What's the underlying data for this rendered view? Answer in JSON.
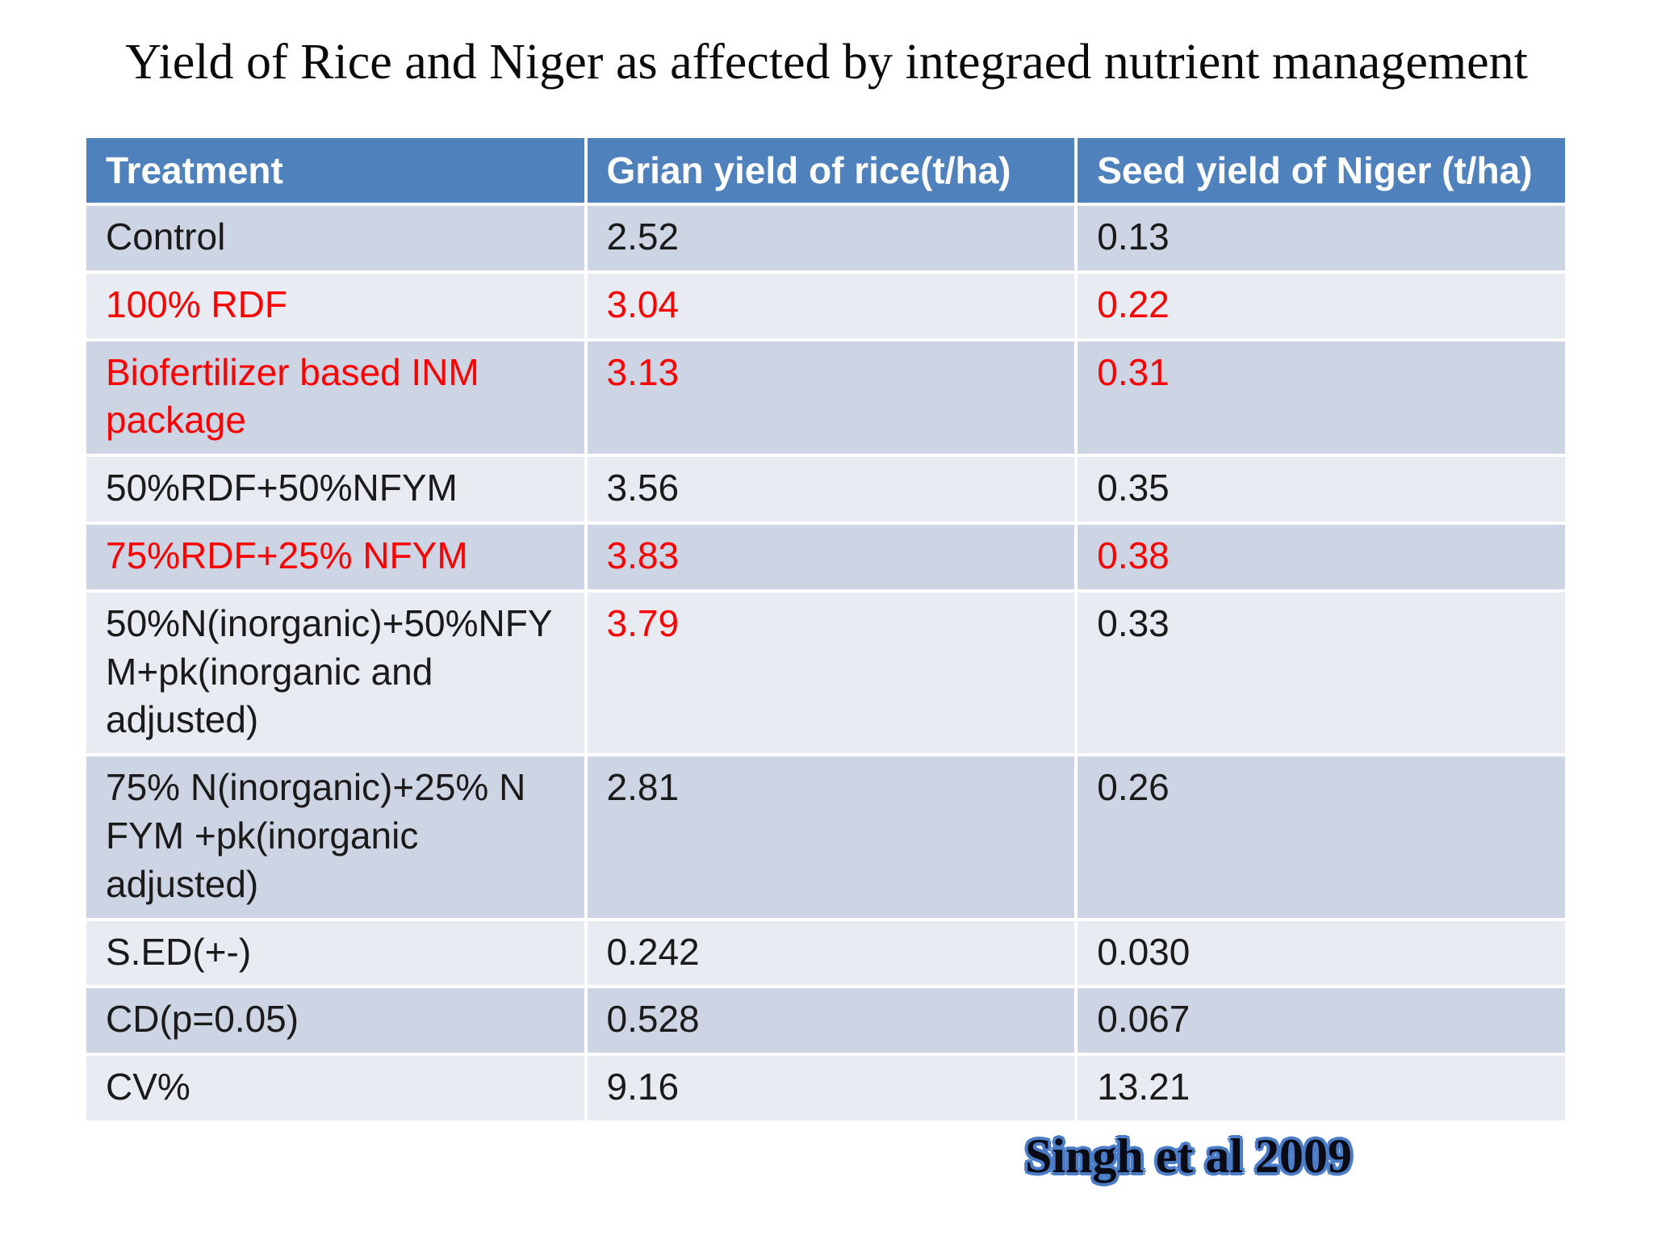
{
  "slide": {
    "title": "Yield of Rice and Niger as affected by integraed nutrient management",
    "citation": "Singh et al 2009"
  },
  "table": {
    "columns": [
      "Treatment",
      "Grian yield of rice(t/ha)",
      "Seed yield of Niger (t/ha)"
    ],
    "rows": [
      {
        "treatment": "Control",
        "rice": "2.52",
        "niger": "0.13",
        "red": [
          false,
          false,
          false
        ]
      },
      {
        "treatment": "100% RDF",
        "rice": "3.04",
        "niger": "0.22",
        "red": [
          true,
          true,
          true
        ]
      },
      {
        "treatment": "Biofertilizer based INM package",
        "rice": "3.13",
        "niger": "0.31",
        "red": [
          true,
          true,
          true
        ]
      },
      {
        "treatment": "50%RDF+50%NFYM",
        "rice": "3.56",
        "niger": "0.35",
        "red": [
          false,
          false,
          false
        ]
      },
      {
        "treatment": "75%RDF+25% NFYM",
        "rice": "3.83",
        "niger": "0.38",
        "red": [
          true,
          true,
          true
        ]
      },
      {
        "treatment": "50%N(inorganic)+50%NFYM+pk(inorganic and adjusted)",
        "rice": "3.79",
        "niger": "0.33",
        "red": [
          false,
          true,
          false
        ]
      },
      {
        "treatment": "75% N(inorganic)+25% N FYM +pk(inorganic adjusted)",
        "rice": "2.81",
        "niger": "0.26",
        "red": [
          false,
          false,
          false
        ]
      },
      {
        "treatment": "S.ED(+-)",
        "rice": "0.242",
        "niger": "0.030",
        "red": [
          false,
          false,
          false
        ]
      },
      {
        "treatment": "CD(p=0.05)",
        "rice": "0.528",
        "niger": "0.067",
        "red": [
          false,
          false,
          false
        ]
      },
      {
        "treatment": "CV%",
        "rice": "9.16",
        "niger": "13.21",
        "red": [
          false,
          false,
          false
        ]
      }
    ]
  },
  "colors": {
    "header_bg": "#4f81bd",
    "row_band_dark": "#cdd4e3",
    "row_band_light": "#e9ebf3",
    "emphasis_red": "#ff0000",
    "citation_outline_blue": "#4a7cc7"
  }
}
